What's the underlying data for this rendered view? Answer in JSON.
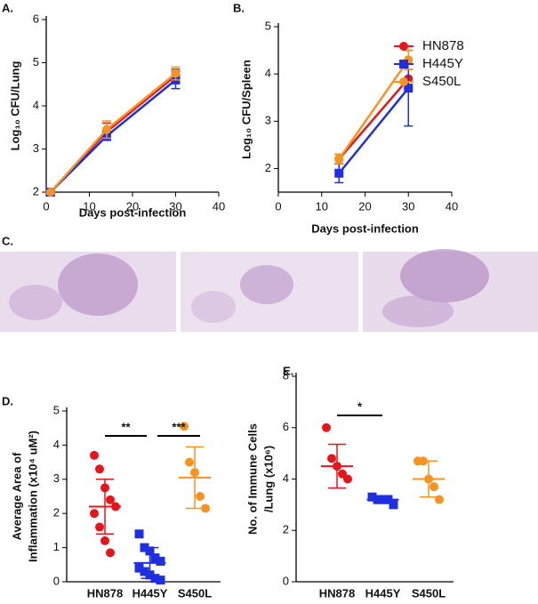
{
  "chart_data": [
    {
      "type": "line",
      "panel_label": "A.",
      "ylabel": "Log₁₀ CFU/Lung",
      "xlabel": "Days post-infection",
      "x": [
        1,
        14,
        30
      ],
      "xlim": [
        0,
        40
      ],
      "xticks": [
        0,
        10,
        20,
        30,
        40
      ],
      "ylim": [
        2,
        6
      ],
      "yticks": [
        2,
        3,
        4,
        5,
        6
      ],
      "series": [
        {
          "name": "HN878",
          "color": "#e8141b",
          "marker": "circle",
          "values": [
            2.0,
            3.4,
            4.7
          ],
          "errors": [
            0.03,
            0.2,
            0.15
          ]
        },
        {
          "name": "H445Y",
          "color": "#1f2fe0",
          "marker": "square",
          "values": [
            2.0,
            3.3,
            4.6
          ],
          "errors": [
            0.03,
            0.1,
            0.2
          ]
        },
        {
          "name": "S450L",
          "color": "#f7931e",
          "marker": "circle",
          "values": [
            2.0,
            3.45,
            4.75
          ],
          "errors": [
            0.03,
            0.2,
            0.15
          ]
        }
      ]
    },
    {
      "type": "line",
      "panel_label": "B.",
      "ylabel": "Log₁₀ CFU/Spleen",
      "xlabel": "Days post-infection",
      "legend": "upper right",
      "x": [
        14,
        30
      ],
      "xlim": [
        0,
        40
      ],
      "xticks": [
        0,
        10,
        20,
        30,
        40
      ],
      "ylim": [
        1.5,
        5
      ],
      "yticks": [
        2,
        3,
        4,
        5
      ],
      "series": [
        {
          "name": "HN878",
          "color": "#e8141b",
          "marker": "circle",
          "values": [
            2.2,
            3.9
          ],
          "errors": [
            0.1,
            0.2
          ]
        },
        {
          "name": "H445Y",
          "color": "#1f2fe0",
          "marker": "square",
          "values": [
            1.9,
            3.7
          ],
          "errors": [
            0.2,
            0.8
          ]
        },
        {
          "name": "S450L",
          "color": "#f7931e",
          "marker": "circle",
          "values": [
            2.2,
            4.3
          ],
          "errors": [
            0.1,
            0.2
          ]
        }
      ]
    },
    {
      "type": "dot",
      "panel_label": "D.",
      "ylabel": [
        "Average Area of",
        "Inflammation (x10⁴ uM²)"
      ],
      "categories": [
        "HN878",
        "H445Y",
        "S450L"
      ],
      "colors": [
        "#e8141b",
        "#1f2fe0",
        "#f7931e"
      ],
      "markers": [
        "circle",
        "square",
        "circle"
      ],
      "ylim": [
        0,
        5
      ],
      "yticks": [
        0,
        1,
        2,
        3,
        4,
        5
      ],
      "values": [
        [
          3.7,
          3.3,
          2.75,
          2.4,
          2.2,
          2.0,
          1.6,
          1.2,
          0.85
        ],
        [
          1.4,
          1.0,
          0.9,
          0.7,
          0.6,
          0.4,
          0.3,
          0.2,
          0.1,
          0.05
        ],
        [
          4.55,
          3.5,
          3.2,
          2.5,
          2.15
        ]
      ],
      "means": [
        2.2,
        0.55,
        3.05
      ],
      "sds": [
        0.8,
        0.45,
        0.9
      ],
      "annotations": [
        "**",
        "***"
      ]
    },
    {
      "type": "dot",
      "panel_label": "E.",
      "ylabel": [
        "No. of Immune Cells",
        "/Lung (x10⁶)"
      ],
      "categories": [
        "HN878",
        "H445Y",
        "S450L"
      ],
      "colors": [
        "#e8141b",
        "#1f2fe0",
        "#f7931e"
      ],
      "markers": [
        "circle",
        "square",
        "circle"
      ],
      "ylim": [
        0,
        8
      ],
      "yticks": [
        0,
        2,
        4,
        6,
        8
      ],
      "values": [
        [
          6.0,
          4.8,
          4.5,
          4.2,
          4.0
        ],
        [
          3.3,
          3.2,
          3.2,
          3.2,
          3.0
        ],
        [
          4.7,
          4.7,
          4.0,
          3.7,
          3.2
        ]
      ],
      "means": [
        4.5,
        3.2,
        4.0
      ],
      "sds": [
        0.85,
        0.15,
        0.7
      ],
      "annotations": [
        "*"
      ]
    }
  ],
  "histology": {
    "panel_label": "C."
  }
}
